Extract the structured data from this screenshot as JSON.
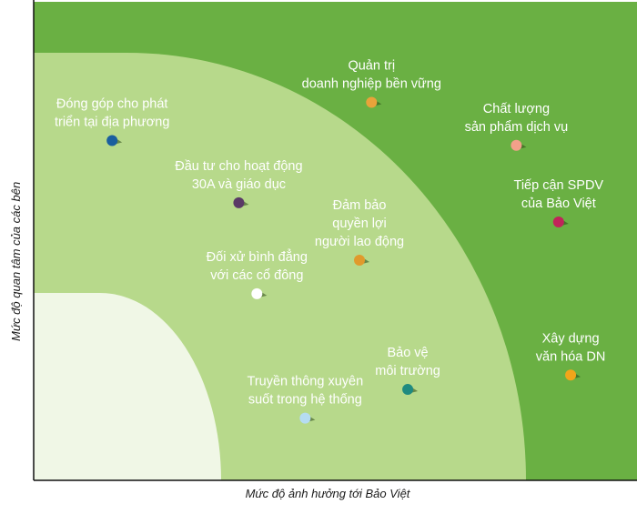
{
  "chart_data": {
    "type": "scatter",
    "title": "",
    "xlabel": "Mức độ ảnh hưởng tới Bảo Việt",
    "ylabel": "Mức độ quan tâm của các bên",
    "xlim": [
      0,
      100
    ],
    "ylim": [
      0,
      100
    ],
    "grid": false,
    "zones": [
      {
        "name": "high",
        "color": "#6ab043"
      },
      {
        "name": "medium",
        "color": "#b7d98b"
      },
      {
        "name": "low",
        "color": "#f0f7e6"
      }
    ],
    "points": [
      {
        "label": "Quản trị\ndoanh nghiệp bền vững",
        "x": 56,
        "y": 79,
        "color": "#e8a33a"
      },
      {
        "label": "Chất lượng\nsản phẩm dịch vụ",
        "x": 80,
        "y": 70,
        "color": "#f2a08a"
      },
      {
        "label": "Đóng góp cho phát\ntriển tại địa phương",
        "x": 13,
        "y": 71,
        "color": "#1a5f9e"
      },
      {
        "label": "Đầu tư cho hoạt động\n30A và giáo dục",
        "x": 34,
        "y": 58,
        "color": "#5a3a66"
      },
      {
        "label": "Đảm bảo\nquyền lợi\nngười lao động",
        "x": 54,
        "y": 46,
        "color": "#e09a2c"
      },
      {
        "label": "Tiếp cận SPDV\ncủa Bảo Việt",
        "x": 87,
        "y": 54,
        "color": "#c0245a"
      },
      {
        "label": "Đối xử bình đẳng\nvới các cổ đông",
        "x": 37,
        "y": 39,
        "color": "#ffffff"
      },
      {
        "label": "Bảo vệ\nmôi trường",
        "x": 62,
        "y": 19,
        "color": "#1f8a80"
      },
      {
        "label": "Xây dựng\nvăn hóa DN",
        "x": 89,
        "y": 22,
        "color": "#f2a51a"
      },
      {
        "label": "Truyền thông xuyên\nsuốt trong hệ thống",
        "x": 45,
        "y": 13,
        "color": "#b5dcf2"
      }
    ]
  }
}
